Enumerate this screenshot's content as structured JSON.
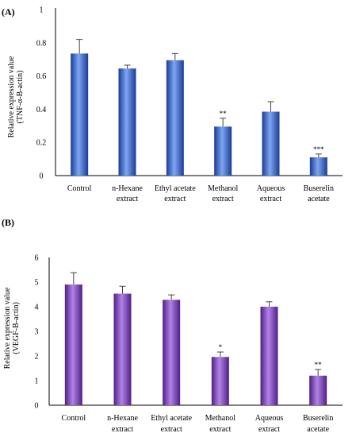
{
  "chart_data": [
    {
      "panel_label": "(A)",
      "type": "bar",
      "ylabel": "Relative expression value",
      "ylabel_sub": "(TNF-α-B-actin)",
      "xlabel": "",
      "ylim": [
        0,
        1
      ],
      "yticks": [
        "0",
        "0.2",
        "0.4",
        "0.6",
        "0.8",
        "1"
      ],
      "categories": [
        [
          "Control",
          ""
        ],
        [
          "n-Hexane",
          "extract"
        ],
        [
          "Ethyl acetate",
          "extract"
        ],
        [
          "Methanol",
          "extract"
        ],
        [
          "Aqueous",
          "extract"
        ],
        [
          "Buserelin",
          "acetate"
        ]
      ],
      "values": [
        0.735,
        0.645,
        0.695,
        0.295,
        0.385,
        0.11
      ],
      "errors": [
        0.085,
        0.02,
        0.04,
        0.05,
        0.06,
        0.02
      ],
      "significance": [
        "",
        "",
        "",
        "**",
        "",
        "***"
      ],
      "color": "#2f63d6",
      "color_dark": "#1a3c96",
      "color_light": "#7ea6f2",
      "grid": false
    },
    {
      "panel_label": "(B)",
      "type": "bar",
      "ylabel": "Relative expression value",
      "ylabel_sub": "(VEGF-B-actin)",
      "xlabel": "",
      "ylim": [
        0,
        6
      ],
      "yticks": [
        "0",
        "1",
        "2",
        "3",
        "4",
        "5",
        "6"
      ],
      "categories": [
        [
          "Control",
          ""
        ],
        [
          "n-Hexane",
          "extract"
        ],
        [
          "Ethyl acetate",
          "extract"
        ],
        [
          "Methanol",
          "extract"
        ],
        [
          "Aqueous",
          "extract"
        ],
        [
          "Buserelin",
          "acetate"
        ]
      ],
      "values": [
        4.9,
        4.53,
        4.28,
        1.96,
        4.0,
        1.2
      ],
      "errors": [
        0.48,
        0.3,
        0.2,
        0.2,
        0.2,
        0.25
      ],
      "significance": [
        "",
        "",
        "",
        "*",
        "",
        "**"
      ],
      "color": "#7b34c4",
      "color_dark": "#4f1f87",
      "color_light": "#b283e6",
      "grid": false
    }
  ]
}
